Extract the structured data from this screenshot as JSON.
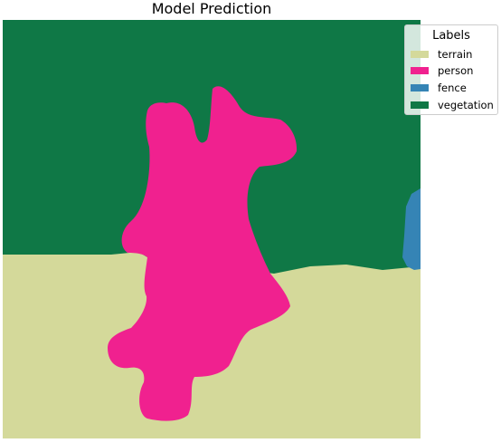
{
  "title": "Model Prediction",
  "legend": {
    "title": "Labels",
    "items": [
      {
        "label": "terrain",
        "color": "#d4d99a"
      },
      {
        "label": "person",
        "color": "#f0218f"
      },
      {
        "label": "fence",
        "color": "#3584b5"
      },
      {
        "label": "vegetation",
        "color": "#0f7846"
      }
    ]
  }
}
